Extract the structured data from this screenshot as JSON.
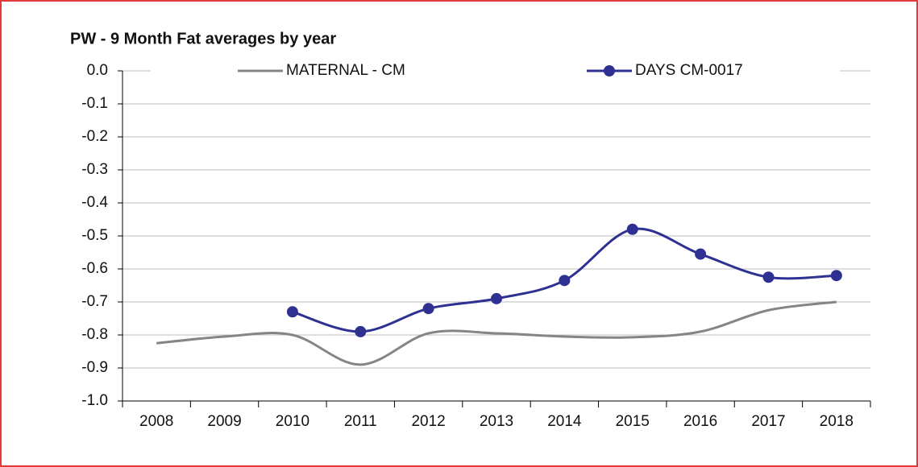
{
  "chart_data": {
    "type": "line",
    "title": "PW - 9 Month Fat averages by year",
    "categories": [
      "2008",
      "2009",
      "2010",
      "2011",
      "2012",
      "2013",
      "2014",
      "2015",
      "2016",
      "2017",
      "2018"
    ],
    "series": [
      {
        "name": "MATERNAL - CM",
        "color": "#858585",
        "markers": false,
        "values": [
          -0.825,
          -0.805,
          -0.8,
          -0.89,
          -0.795,
          -0.795,
          -0.805,
          -0.807,
          -0.79,
          -0.725,
          -0.7
        ]
      },
      {
        "name": "DAYS CM-0017",
        "color": "#2e3192",
        "markers": true,
        "values": [
          null,
          null,
          -0.73,
          -0.79,
          -0.72,
          -0.69,
          -0.635,
          -0.48,
          -0.555,
          -0.625,
          -0.62
        ]
      }
    ],
    "ylim": [
      -1,
      0
    ],
    "yticks": [
      {
        "value": 0,
        "label": "0.0"
      },
      -0.1,
      -0.2,
      -0.3,
      -0.4,
      -0.5,
      -0.6,
      -0.7,
      -0.8,
      -0.9,
      {
        "value": -1,
        "label": "-1.0"
      }
    ],
    "grid": true,
    "smooth": true,
    "legend": "top"
  }
}
